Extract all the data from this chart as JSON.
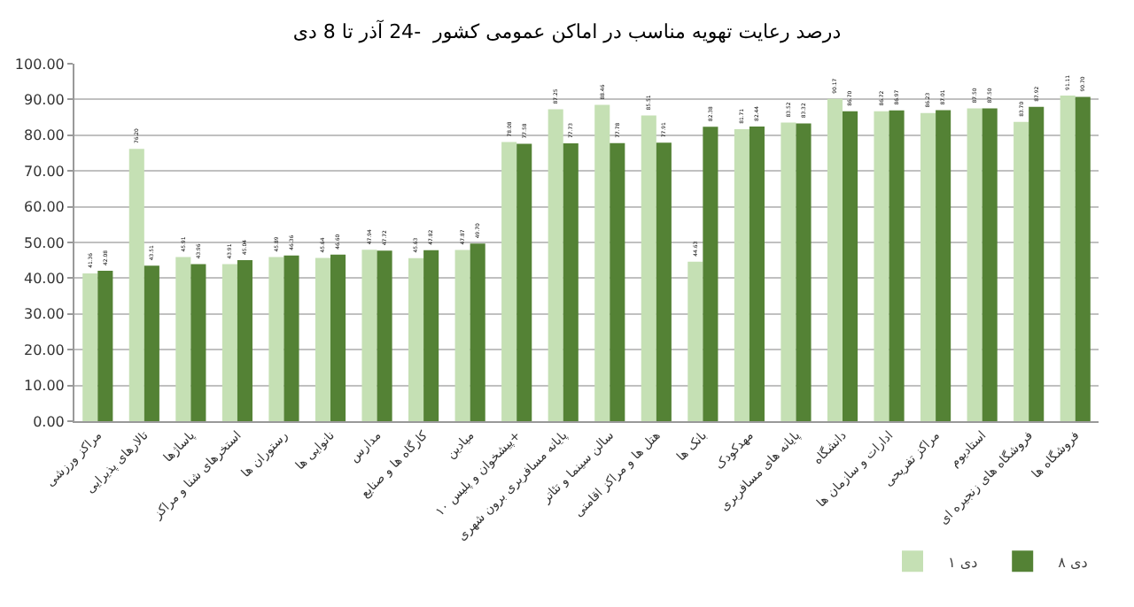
{
  "chart_data": {
    "type": "bar",
    "title": "درصد رعایت تهویه مناسب در اماکن عمومی کشور  -24 آذر تا 8 دی",
    "categories": [
      "مراکز ورزشی",
      "تالارهای پذیرایی",
      "پاساژها",
      "استخرهای شنا و مراکز",
      "رستوران ها",
      "نانوایی ها",
      "مدارس",
      "کارگاه ها و صنایع",
      "میادین",
      "پیشخوان و پلیس ۱۰+",
      "پایانه مسافربری برون شهری",
      "سالن سینما و تئاتر",
      "هتل ها و مراکز اقامتی",
      "بانک ها",
      "مهدکودک",
      "پایانه های مسافربری",
      "دانشگاه",
      "ادارات و سازمان ها",
      "مراکز تفریحی",
      "استادیوم",
      "فروشگاه های زنجیره ای",
      "فروشگاه ها"
    ],
    "series": [
      {
        "name": "۱ دی",
        "color": "#c5e0b4",
        "values": [
          41.36,
          76.2,
          45.91,
          43.91,
          45.89,
          45.64,
          47.94,
          45.63,
          47.87,
          78.08,
          87.25,
          88.46,
          85.51,
          44.63,
          81.71,
          83.52,
          90.17,
          86.72,
          86.23,
          87.5,
          83.7,
          91.11
        ],
        "value_labels": [
          "41.36",
          "76.20",
          "45.91",
          "43.91",
          "45.89",
          "45.64",
          "47.94",
          "45.63",
          "47.87",
          "78.08",
          "87.25",
          "88.46",
          "85.51",
          "44.63",
          "81.71",
          "83.52",
          "90.17",
          "86.72",
          "86.23",
          "87.50",
          "83.70",
          "91.11"
        ]
      },
      {
        "name": "۸ دی",
        "color": "#548235",
        "values": [
          42.08,
          43.51,
          43.96,
          45.04,
          46.36,
          46.6,
          47.72,
          47.82,
          49.7,
          77.58,
          77.73,
          77.78,
          77.91,
          82.38,
          82.44,
          83.32,
          86.7,
          86.97,
          87.01,
          87.5,
          87.92,
          90.7
        ],
        "value_labels": [
          "42.08",
          "43.51",
          "43.96",
          "45.04",
          "46.36",
          "46.60",
          "47.72",
          "47.82",
          "49.70",
          "77.58",
          "77.73",
          "77.78",
          "77.91",
          "82.38",
          "82.44",
          "83.32",
          "86.70",
          "86.97",
          "87.01",
          "87.50",
          "87.92",
          "90.70"
        ]
      }
    ],
    "ylim": [
      0,
      100
    ],
    "yticks": [
      {
        "value": 0,
        "label": "0.00"
      },
      {
        "value": 10,
        "label": "10.00"
      },
      {
        "value": 20,
        "label": "20.00"
      },
      {
        "value": 30,
        "label": "30.00"
      },
      {
        "value": 40,
        "label": "40.00"
      },
      {
        "value": 50,
        "label": "50.00"
      },
      {
        "value": 60,
        "label": "60.00"
      },
      {
        "value": 70,
        "label": "70.00"
      },
      {
        "value": 80,
        "label": "80.00"
      },
      {
        "value": 90,
        "label": "90.00"
      },
      {
        "value": 100,
        "label": "100.00"
      }
    ],
    "grid": "y",
    "legend": "bottom right"
  }
}
